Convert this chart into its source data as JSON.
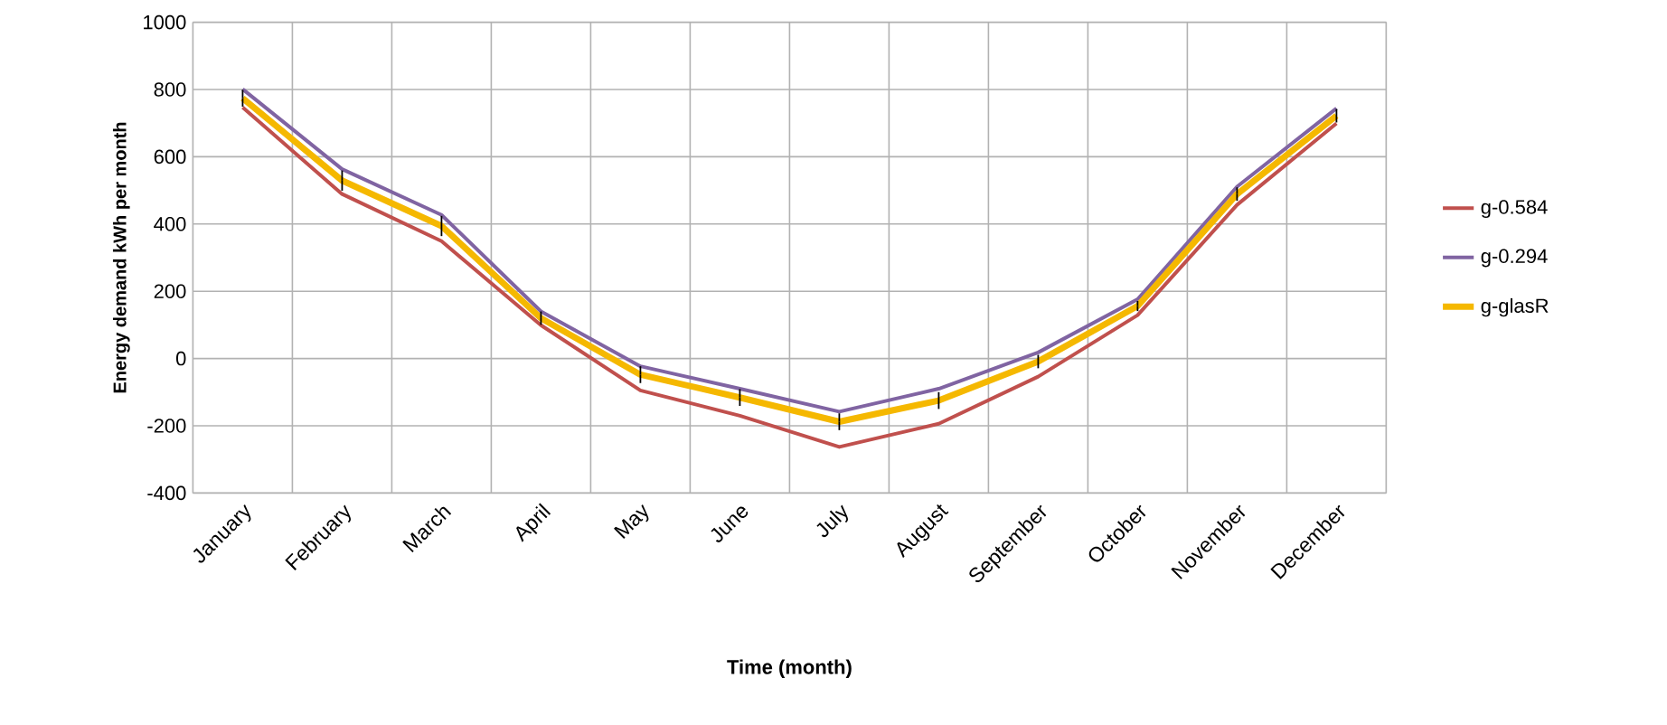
{
  "chart_data": {
    "type": "line",
    "xlabel": "Time (month)",
    "ylabel": "Energy demand kWh per month",
    "categories": [
      "January",
      "February",
      "March",
      "April",
      "May",
      "June",
      "July",
      "August",
      "September",
      "October",
      "November",
      "December"
    ],
    "series": [
      {
        "name": "g-0.584",
        "color": "#c0504d",
        "values": [
          747,
          489,
          349,
          99,
          -95,
          -170,
          -263,
          -194,
          -54,
          129,
          457,
          699
        ]
      },
      {
        "name": "g-0.294",
        "color": "#8064a2",
        "values": [
          801,
          563,
          427,
          140,
          -23,
          -90,
          -158,
          -90,
          18,
          176,
          511,
          744
        ]
      },
      {
        "name": "g-glasR",
        "color": "#f5b800",
        "values": [
          774,
          529,
          394,
          120,
          -48,
          -116,
          -188,
          -125,
          -9,
          156,
          489,
          722
        ],
        "errors": [
          25,
          30,
          30,
          20,
          25,
          25,
          25,
          25,
          20,
          15,
          20,
          20
        ]
      }
    ],
    "ylim": [
      -400,
      1000
    ],
    "yticks": [
      -400,
      -200,
      0,
      200,
      400,
      600,
      800,
      1000
    ],
    "grid": true,
    "legend": "right",
    "marker": "none",
    "line_style": "solid"
  }
}
